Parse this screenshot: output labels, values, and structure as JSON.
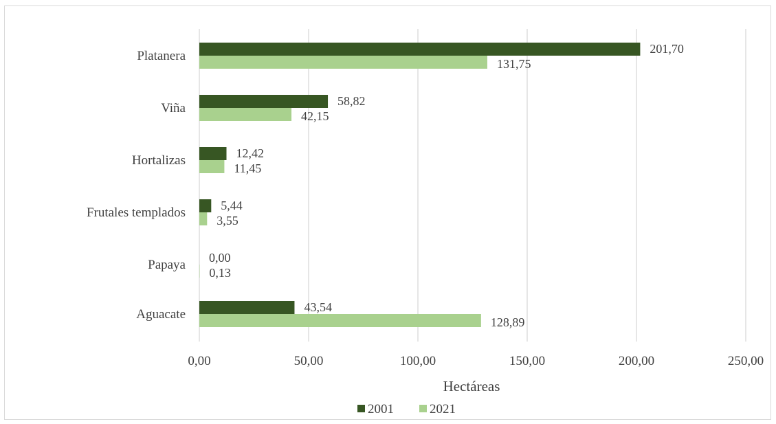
{
  "chart_data": {
    "type": "bar",
    "orientation": "horizontal",
    "categories": [
      "Platanera",
      "Viña",
      "Hortalizas",
      "Frutales templados",
      "Papaya",
      "Aguacate"
    ],
    "series": [
      {
        "name": "2001",
        "color": "#375623",
        "values": [
          201.7,
          58.82,
          12.42,
          5.44,
          0.0,
          43.54
        ],
        "labels": [
          "201,70",
          "58,82",
          "12,42",
          "5,44",
          "0,00",
          "43,54"
        ]
      },
      {
        "name": "2021",
        "color": "#a9d18e",
        "values": [
          131.75,
          42.15,
          11.45,
          3.55,
          0.13,
          128.89
        ],
        "labels": [
          "131,75",
          "42,15",
          "11,45",
          "3,55",
          "0,13",
          "128,89"
        ]
      }
    ],
    "xlabel": "Hectáreas",
    "ylabel": "",
    "xlim": [
      0,
      250
    ],
    "xticks": [
      0,
      50,
      100,
      150,
      200,
      250
    ],
    "xtick_labels": [
      "0,00",
      "50,00",
      "100,00",
      "150,00",
      "200,00",
      "250,00"
    ],
    "grid": true,
    "legend_position": "bottom"
  }
}
